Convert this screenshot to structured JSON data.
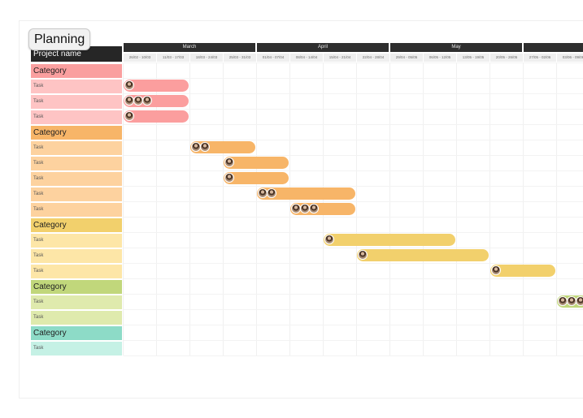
{
  "title": "Planning",
  "header": {
    "project_label": "Project name"
  },
  "months": [
    "March",
    "April",
    "May"
  ],
  "weeks": [
    "26/02 - 10/03",
    "11/03 - 17/03",
    "18/03 - 24/03",
    "25/03 - 31/03",
    "01/04 - 07/04",
    "08/04 - 14/04",
    "15/04 - 21/04",
    "22/04 - 28/04",
    "29/04 - 05/05",
    "06/05 - 12/05",
    "13/05 - 19/05",
    "20/05 - 26/05",
    "27/05 - 02/06",
    "03/06 - 09/06"
  ],
  "colors": {
    "red": {
      "cat": "#fa9f9f",
      "task": "#fec4c4",
      "bar": "#fb9e9e"
    },
    "orange": {
      "cat": "#f7b568",
      "task": "#fdd29f",
      "bar": "#f7b568"
    },
    "yellow": {
      "cat": "#f2d06c",
      "task": "#fde6a7",
      "bar": "#f2d06c"
    },
    "green": {
      "cat": "#c1d77b",
      "task": "#dfeaad",
      "bar": "#c1d77b"
    },
    "teal": {
      "cat": "#8ddbc7",
      "task": "#c5f1e5",
      "bar": "#8ddbc7"
    }
  },
  "rows": [
    {
      "type": "category",
      "label": "Category",
      "color": "red"
    },
    {
      "type": "task",
      "label": "Task",
      "color": "red",
      "start": 0,
      "weeks": 2,
      "people": 1
    },
    {
      "type": "task",
      "label": "Task",
      "color": "red",
      "start": 0,
      "weeks": 2,
      "people": 3
    },
    {
      "type": "task",
      "label": "Task",
      "color": "red",
      "start": 0,
      "weeks": 2,
      "people": 1
    },
    {
      "type": "category",
      "label": "Category",
      "color": "orange"
    },
    {
      "type": "task",
      "label": "Task",
      "color": "orange",
      "start": 2,
      "weeks": 2,
      "people": 2
    },
    {
      "type": "task",
      "label": "Task",
      "color": "orange",
      "start": 3,
      "weeks": 2,
      "people": 1
    },
    {
      "type": "task",
      "label": "Task",
      "color": "orange",
      "start": 3,
      "weeks": 2,
      "people": 1
    },
    {
      "type": "task",
      "label": "Task",
      "color": "orange",
      "start": 4,
      "weeks": 3,
      "people": 2
    },
    {
      "type": "task",
      "label": "Task",
      "color": "orange",
      "start": 5,
      "weeks": 2,
      "people": 3
    },
    {
      "type": "category",
      "label": "Category",
      "color": "yellow"
    },
    {
      "type": "task",
      "label": "Task",
      "color": "yellow",
      "start": 6,
      "weeks": 4,
      "people": 1
    },
    {
      "type": "task",
      "label": "Task",
      "color": "yellow",
      "start": 7,
      "weeks": 4,
      "people": 1
    },
    {
      "type": "task",
      "label": "Task",
      "color": "yellow",
      "start": 11,
      "weeks": 2,
      "people": 1
    },
    {
      "type": "category",
      "label": "Category",
      "color": "green"
    },
    {
      "type": "task",
      "label": "Task",
      "color": "green",
      "start": 13,
      "weeks": 1,
      "people": 3
    },
    {
      "type": "task",
      "label": "Task",
      "color": "green"
    },
    {
      "type": "category",
      "label": "Category",
      "color": "teal"
    },
    {
      "type": "task",
      "label": "Task",
      "color": "teal"
    }
  ]
}
